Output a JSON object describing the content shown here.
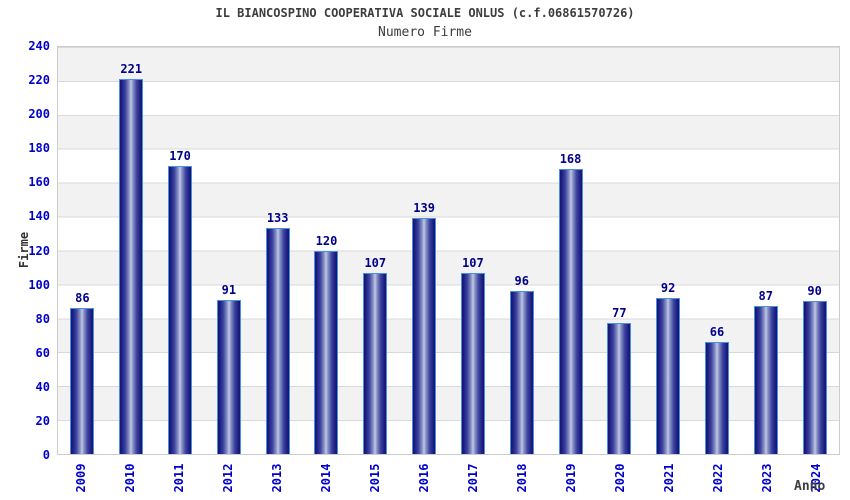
{
  "chart": {
    "title": "IL BIANCOSPINO COOPERATIVA SOCIALE ONLUS (c.f.06861570726)",
    "subtitle": "Numero Firme"
  },
  "chart_data": {
    "type": "bar",
    "title": "IL BIANCOSPINO COOPERATIVA SOCIALE ONLUS (c.f.06861570726)",
    "subtitle": "Numero Firme",
    "xlabel": "Anno",
    "ylabel": "Firme",
    "categories": [
      "2009",
      "2010",
      "2011",
      "2012",
      "2013",
      "2014",
      "2015",
      "2016",
      "2017",
      "2018",
      "2019",
      "2020",
      "2021",
      "2022",
      "2023",
      "2024"
    ],
    "values": [
      86,
      221,
      170,
      91,
      133,
      120,
      107,
      139,
      107,
      96,
      168,
      77,
      92,
      66,
      87,
      90
    ],
    "bar_labels": true,
    "ylim": [
      0,
      240
    ],
    "ytick_step": 20,
    "yticks": [
      0,
      20,
      40,
      60,
      80,
      100,
      120,
      140,
      160,
      180,
      200,
      220,
      240
    ],
    "grid": true,
    "legend_position": "none",
    "colors": {
      "axis_tick_label": "#0000cc",
      "bar_value_label": "#00008b",
      "bar_edge": "#14146e",
      "bar_center": "#c2c8e4",
      "bar_border": "#4a90e2",
      "band_gray": "#f2f2f2",
      "band_white": "#ffffff",
      "grid_line": "#d9d9d9",
      "plot_border": "#cccccc",
      "title_text": "#3d3d3d"
    }
  }
}
